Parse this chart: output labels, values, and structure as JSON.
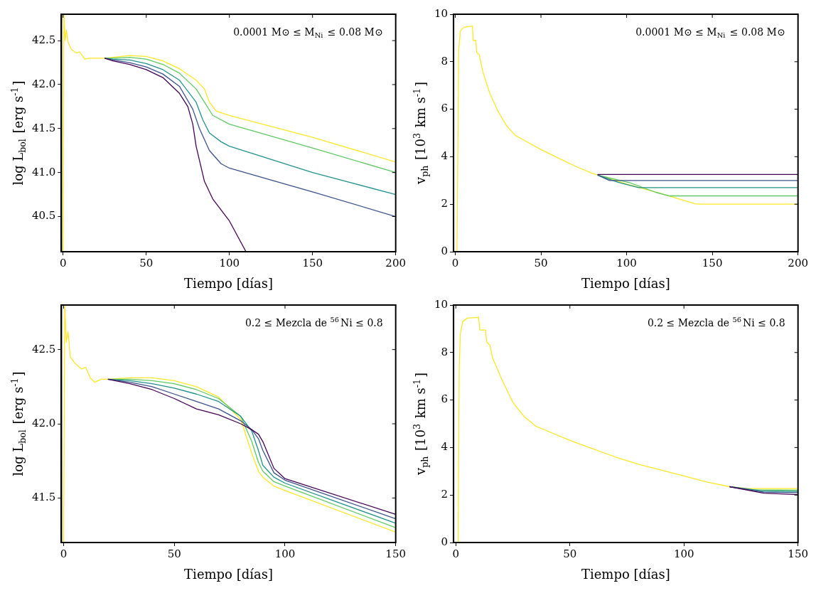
{
  "chart_data": [
    {
      "type": "line",
      "xlabel": "Tiempo [días]",
      "ylabel": "log L$_{bol}$ [erg s$^{-1}$]",
      "annotations": [
        "0.0001 M⊙ ≤ M$_{Ni}$ ≤ 0.08 M⊙"
      ],
      "xlim": [
        -1,
        200
      ],
      "xticks": [
        0,
        50,
        100,
        150,
        200
      ],
      "ylim": [
        40.1,
        42.8
      ],
      "yticks": [
        {
          "value": 40.5,
          "label": "40.5"
        },
        {
          "value": 41,
          "label": "41.0"
        },
        {
          "value": 41.5,
          "label": "41.5"
        },
        {
          "value": 42,
          "label": "42.0"
        },
        {
          "value": 42.5,
          "label": "42.5"
        }
      ],
      "legend": false,
      "series": [
        {
          "color": "#440154",
          "x": [
            25,
            30,
            40,
            50,
            60,
            70,
            75,
            78,
            80,
            85,
            90,
            100,
            110
          ],
          "values": [
            42.3,
            42.27,
            42.23,
            42.17,
            42.08,
            41.9,
            41.75,
            41.55,
            41.3,
            40.9,
            40.7,
            40.45,
            40.1
          ]
        },
        {
          "color": "#3b528b",
          "x": [
            25,
            30,
            40,
            50,
            60,
            70,
            78,
            82,
            88,
            95,
            100,
            150,
            200
          ],
          "values": [
            42.3,
            42.28,
            42.25,
            42.2,
            42.12,
            41.98,
            41.72,
            41.5,
            41.25,
            41.1,
            41.05,
            40.78,
            40.5
          ]
        },
        {
          "color": "#21918c",
          "x": [
            25,
            30,
            40,
            50,
            60,
            70,
            80,
            84,
            88,
            95,
            100,
            150,
            200
          ],
          "values": [
            42.3,
            42.29,
            42.28,
            42.24,
            42.17,
            42.05,
            41.8,
            41.6,
            41.45,
            41.35,
            41.3,
            41.0,
            40.75
          ]
        },
        {
          "color": "#5ec962",
          "x": [
            25,
            30,
            40,
            50,
            60,
            70,
            80,
            85,
            90,
            100,
            150,
            200
          ],
          "values": [
            42.3,
            42.3,
            42.31,
            42.29,
            42.23,
            42.13,
            41.95,
            41.8,
            41.65,
            41.55,
            41.28,
            41.0
          ]
        },
        {
          "color": "#fde725",
          "x": [
            0,
            0.5,
            1.2,
            2,
            3,
            5,
            8,
            10,
            13,
            16,
            25,
            30,
            40,
            50,
            60,
            70,
            80,
            85,
            88,
            92,
            100,
            150,
            200
          ],
          "values": [
            40.1,
            42.8,
            42.5,
            42.62,
            42.48,
            42.4,
            42.36,
            42.37,
            42.29,
            42.3,
            42.3,
            42.31,
            42.33,
            42.32,
            42.27,
            42.18,
            42.05,
            41.95,
            41.8,
            41.7,
            41.65,
            41.4,
            41.12
          ]
        }
      ]
    },
    {
      "type": "line",
      "xlabel": "Tiempo [días]",
      "ylabel": "v$_{ph}$ [10$^{3}$ km s$^{-1}$]",
      "annotations": [
        "0.0001 M⊙ ≤ M$_{Ni}$ ≤ 0.08 M⊙"
      ],
      "xlim": [
        -1,
        200
      ],
      "xticks": [
        0,
        50,
        100,
        150,
        200
      ],
      "ylim": [
        0,
        10
      ],
      "yticks": [
        0,
        2,
        4,
        6,
        8,
        10
      ],
      "legend": false,
      "series": [
        {
          "color": "#440154",
          "x": [
            83,
            200
          ],
          "values": [
            3.25,
            3.25
          ]
        },
        {
          "color": "#3b528b",
          "x": [
            83,
            90,
            200
          ],
          "values": [
            3.23,
            3.0,
            3.0
          ]
        },
        {
          "color": "#21918c",
          "x": [
            83,
            95,
            107,
            200
          ],
          "values": [
            3.23,
            2.92,
            2.7,
            2.7
          ]
        },
        {
          "color": "#5ec962",
          "x": [
            83,
            102,
            117,
            125,
            200
          ],
          "values": [
            3.23,
            2.9,
            2.5,
            2.35,
            2.35
          ]
        },
        {
          "color": "#fde725",
          "x": [
            0,
            1,
            2,
            3,
            5,
            10,
            10.5,
            12,
            12.5,
            14,
            16,
            20,
            25,
            30,
            35,
            40,
            50,
            60,
            70,
            80,
            83,
            100,
            120,
            140,
            143,
            200
          ],
          "values": [
            0,
            0,
            8.5,
            9.3,
            9.45,
            9.5,
            8.9,
            8.9,
            8.4,
            8.3,
            7.6,
            6.7,
            5.9,
            5.3,
            4.9,
            4.7,
            4.3,
            3.95,
            3.6,
            3.3,
            3.23,
            2.85,
            2.45,
            2.02,
            2.0,
            2.0
          ]
        }
      ]
    },
    {
      "type": "line",
      "xlabel": "Tiempo [días]",
      "ylabel": "log L$_{bol}$ [erg s$^{-1}$]",
      "annotations": [
        "0.2 ≤ Mezcla de $^{56}$Ni ≤ 0.8"
      ],
      "xlim": [
        -1,
        150
      ],
      "xticks": [
        0,
        50,
        100,
        150
      ],
      "ylim": [
        41.2,
        42.8
      ],
      "yticks": [
        {
          "value": 41.5,
          "label": "41.5"
        },
        {
          "value": 42,
          "label": "42.0"
        },
        {
          "value": 42.5,
          "label": "42.5"
        }
      ],
      "legend": false,
      "series": [
        {
          "color": "#440154",
          "x": [
            20,
            30,
            40,
            50,
            60,
            70,
            80,
            85,
            88,
            90,
            95,
            100,
            150
          ],
          "values": [
            42.3,
            42.27,
            42.23,
            42.17,
            42.1,
            42.06,
            42.0,
            41.96,
            41.93,
            41.88,
            41.7,
            41.63,
            41.39
          ]
        },
        {
          "color": "#3b528b",
          "x": [
            20,
            30,
            40,
            50,
            60,
            70,
            80,
            85,
            88,
            90,
            95,
            100,
            150
          ],
          "values": [
            42.3,
            42.28,
            42.25,
            42.2,
            42.15,
            42.1,
            42.02,
            41.96,
            41.9,
            41.82,
            41.67,
            41.62,
            41.36
          ]
        },
        {
          "color": "#21918c",
          "x": [
            20,
            30,
            40,
            50,
            60,
            70,
            80,
            85,
            88,
            90,
            95,
            100,
            150
          ],
          "values": [
            42.3,
            42.29,
            42.27,
            42.24,
            42.2,
            42.15,
            42.05,
            41.95,
            41.82,
            41.72,
            41.64,
            41.6,
            41.33
          ]
        },
        {
          "color": "#5ec962",
          "x": [
            20,
            30,
            40,
            50,
            60,
            70,
            80,
            85,
            88,
            90,
            95,
            100,
            150
          ],
          "values": [
            42.3,
            42.3,
            42.29,
            42.27,
            42.23,
            42.17,
            42.05,
            41.88,
            41.74,
            41.68,
            41.61,
            41.58,
            41.3
          ]
        },
        {
          "color": "#fde725",
          "x": [
            0,
            0.5,
            1.2,
            2,
            3,
            5,
            8,
            10,
            12,
            14,
            17,
            20,
            30,
            40,
            50,
            60,
            70,
            80,
            85,
            88,
            90,
            95,
            100,
            150
          ],
          "values": [
            41.2,
            42.8,
            42.55,
            42.62,
            42.45,
            42.41,
            42.37,
            42.38,
            42.31,
            42.28,
            42.3,
            42.3,
            42.31,
            42.31,
            42.29,
            42.25,
            42.18,
            42.03,
            41.8,
            41.68,
            41.64,
            41.58,
            41.55,
            41.27
          ]
        }
      ]
    },
    {
      "type": "line",
      "xlabel": "Tiempo [días]",
      "ylabel": "v$_{ph}$ [10$^{3}$ km s$^{-1}$]",
      "annotations": [
        "0.2 ≤ Mezcla de $^{56}$Ni ≤ 0.8"
      ],
      "xlim": [
        -1,
        150
      ],
      "xticks": [
        0,
        50,
        100,
        150
      ],
      "ylim": [
        0,
        10
      ],
      "yticks": [
        0,
        2,
        4,
        6,
        8,
        10
      ],
      "legend": false,
      "series": [
        {
          "color": "#440154",
          "x": [
            120,
            135,
            150
          ],
          "values": [
            2.35,
            2.08,
            2.02
          ]
        },
        {
          "color": "#3b528b",
          "x": [
            120,
            135,
            150
          ],
          "values": [
            2.35,
            2.12,
            2.1
          ]
        },
        {
          "color": "#21918c",
          "x": [
            120,
            135,
            150
          ],
          "values": [
            2.35,
            2.17,
            2.15
          ]
        },
        {
          "color": "#5ec962",
          "x": [
            120,
            130,
            150
          ],
          "values": [
            2.35,
            2.22,
            2.2
          ]
        },
        {
          "color": "#fde725",
          "x": [
            0,
            1,
            1.5,
            2,
            3,
            5,
            10,
            10.5,
            13,
            13.5,
            15,
            16,
            20,
            25,
            30,
            35,
            40,
            50,
            60,
            70,
            80,
            90,
            100,
            110,
            120,
            128,
            150
          ],
          "values": [
            0,
            0,
            7.5,
            8.8,
            9.3,
            9.45,
            9.48,
            8.95,
            8.95,
            8.45,
            8.3,
            7.8,
            6.9,
            5.9,
            5.3,
            4.9,
            4.7,
            4.3,
            3.95,
            3.6,
            3.3,
            3.05,
            2.8,
            2.55,
            2.35,
            2.27,
            2.27
          ]
        }
      ]
    }
  ]
}
